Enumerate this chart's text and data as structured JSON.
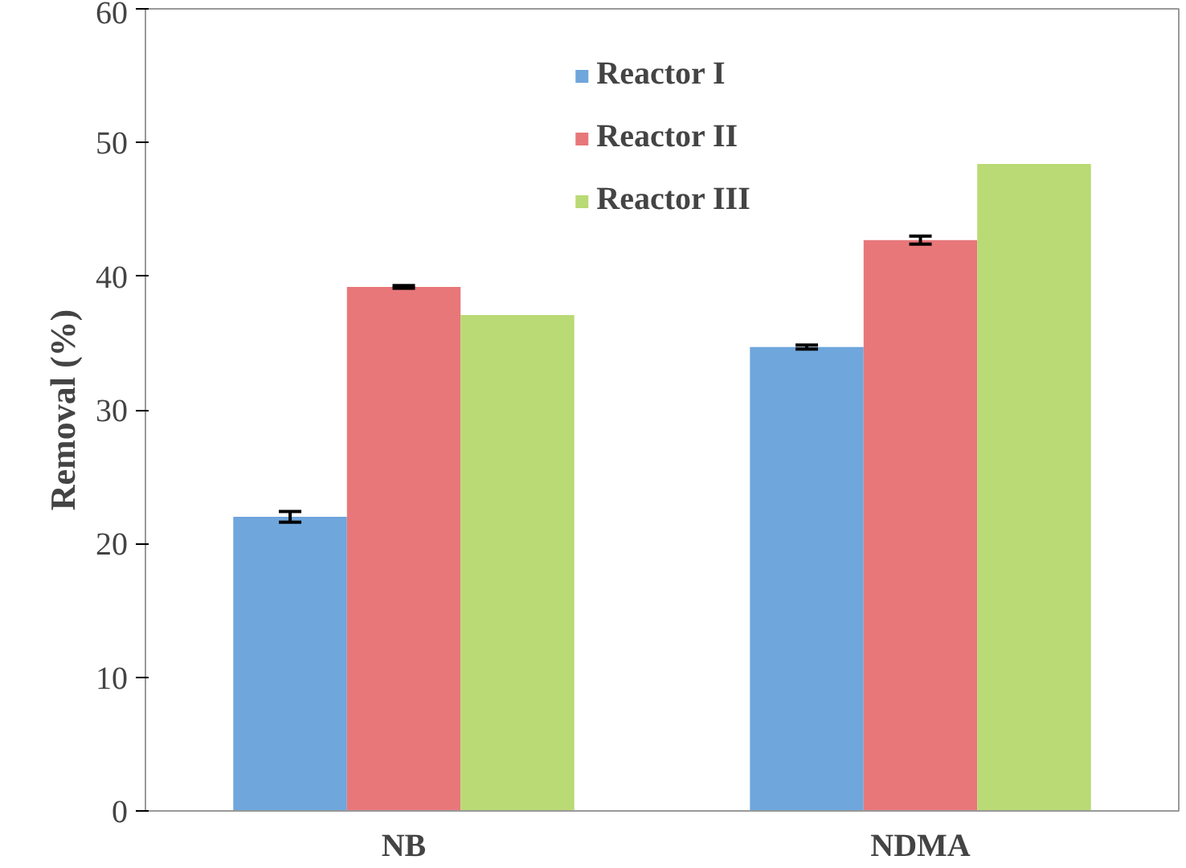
{
  "chart_data": {
    "type": "bar",
    "ylabel": "Removal (%)",
    "categories": [
      "NB",
      "NDMA"
    ],
    "series": [
      {
        "name": "Reactor I",
        "color": "#6fa6dc",
        "values": [
          22.0,
          34.7
        ],
        "errors": [
          0.4,
          0.15
        ]
      },
      {
        "name": "Reactor II",
        "color": "#e8777a",
        "values": [
          39.2,
          42.7
        ],
        "errors": [
          0.1,
          0.3
        ]
      },
      {
        "name": "Reactor III",
        "color": "#b9da74",
        "values": [
          37.1,
          48.4
        ]
      }
    ],
    "ylim": [
      0,
      60
    ],
    "yticks": [
      0,
      10,
      20,
      30,
      40,
      50,
      60
    ],
    "grid": false,
    "legend": "top"
  }
}
